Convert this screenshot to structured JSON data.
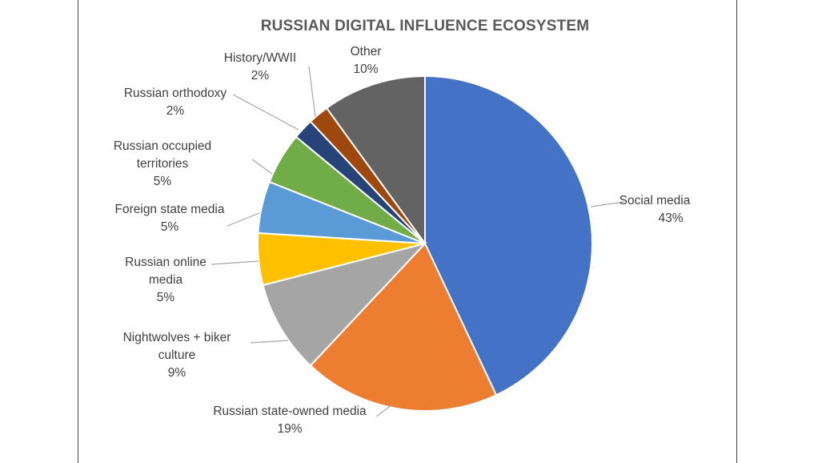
{
  "chart_data": {
    "type": "pie",
    "title": "RUSSIAN DIGITAL INFLUENCE ECOSYSTEM",
    "slices": [
      {
        "name": "Social media",
        "label_lines": [
          "Social media",
          "43%"
        ],
        "value": 43,
        "color": "#4472c4"
      },
      {
        "name": "Russian state-owned media",
        "label_lines": [
          "Russian state-owned media",
          "19%"
        ],
        "value": 19,
        "color": "#ed7d31"
      },
      {
        "name": "Nightwolves + biker culture",
        "label_lines": [
          "Nightwolves + biker",
          "culture",
          "9%"
        ],
        "value": 9,
        "color": "#a5a5a5"
      },
      {
        "name": "Russian online media",
        "label_lines": [
          "Russian online",
          "media",
          "5%"
        ],
        "value": 5,
        "color": "#ffc000"
      },
      {
        "name": "Foreign state media",
        "label_lines": [
          "Foreign state media",
          "5%"
        ],
        "value": 5,
        "color": "#5b9bd5"
      },
      {
        "name": "Russian occupied territories",
        "label_lines": [
          "Russian occupied",
          "territories",
          "5%"
        ],
        "value": 5,
        "color": "#70ad47"
      },
      {
        "name": "Russian orthodoxy",
        "label_lines": [
          "Russian orthodoxy",
          "2%"
        ],
        "value": 2,
        "color": "#264478"
      },
      {
        "name": "History/WWII",
        "label_lines": [
          "History/WWII",
          "2%"
        ],
        "value": 2,
        "color": "#9e480e"
      },
      {
        "name": "Other",
        "label_lines": [
          "Other",
          "10%"
        ],
        "value": 10,
        "color": "#636363"
      }
    ]
  }
}
